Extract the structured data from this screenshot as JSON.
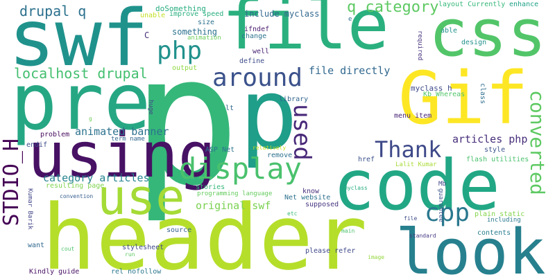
{
  "words": [
    {
      "text": "p",
      "color": "#35b779"
    },
    {
      "text": "header",
      "color": "#b5de2b"
    },
    {
      "text": "file",
      "color": "#2ab07f"
    },
    {
      "text": "swf",
      "color": "#20928c"
    },
    {
      "text": "pre",
      "color": "#26a784"
    },
    {
      "text": "p",
      "color": "#1f9e89"
    },
    {
      "text": "code",
      "color": "#22a785"
    },
    {
      "text": "look",
      "color": "#27808e"
    },
    {
      "text": "Gif",
      "color": "#fde725"
    },
    {
      "text": "css",
      "color": "#52c569"
    },
    {
      "text": "using",
      "color": "#471164"
    },
    {
      "text": "use",
      "color": "#a5db36"
    },
    {
      "text": "display",
      "color": "#4ac16d"
    },
    {
      "text": "around",
      "color": "#3b528b"
    },
    {
      "text": "Thank",
      "color": "#3e4989"
    },
    {
      "text": "used",
      "color": "#482878"
    },
    {
      "text": "php",
      "color": "#21918c"
    },
    {
      "text": "cpp",
      "color": "#2a788e"
    },
    {
      "text": "converted",
      "color": "#5ec962"
    },
    {
      "text": "STDIO_H",
      "color": "#440154"
    },
    {
      "text": "q category",
      "color": "#5ec962"
    },
    {
      "text": "drupal q",
      "color": "#2c718e"
    },
    {
      "text": "localhost drupal",
      "color": "#44bf70"
    },
    {
      "text": "file directly",
      "color": "#31688e"
    },
    {
      "text": "animated banner",
      "color": "#2c728e"
    },
    {
      "text": "articles php",
      "color": "#472d7b"
    },
    {
      "text": "category articles",
      "color": "#25838e"
    },
    {
      "text": "original swf",
      "color": "#7ad151"
    },
    {
      "text": "doSomething",
      "color": "#27ad81"
    },
    {
      "text": "include myclass",
      "color": "#31688e"
    },
    {
      "text": "something",
      "color": "#2c718e"
    },
    {
      "text": "improve speed",
      "color": "#29af7f"
    },
    {
      "text": "unable",
      "color": "#c2df23"
    },
    {
      "text": "size",
      "color": "#2c718e"
    },
    {
      "text": "animation",
      "color": "#6ccd5a"
    },
    {
      "text": "ifndef",
      "color": "#481a6c"
    },
    {
      "text": "change",
      "color": "#2c728e"
    },
    {
      "text": "layout Currently",
      "color": "#35b779"
    },
    {
      "text": "enhance",
      "color": "#1fa188"
    },
    {
      "text": "e",
      "color": "#2e6f8e"
    },
    {
      "text": "able",
      "color": "#20928c"
    },
    {
      "text": "design",
      "color": "#21918c"
    },
    {
      "text": "well",
      "color": "#482475"
    },
    {
      "text": "define",
      "color": "#3e4c8a"
    },
    {
      "text": "C",
      "color": "#472f7d"
    },
    {
      "text": "required",
      "color": "#46327e"
    },
    {
      "text": "output",
      "color": "#90d743"
    },
    {
      "text": "myclass h",
      "color": "#3e4989"
    },
    {
      "text": "Kb Whereas",
      "color": "#52c569"
    },
    {
      "text": "class",
      "color": "#2e6e8e"
    },
    {
      "text": "library",
      "color": "#32658e"
    },
    {
      "text": "lt",
      "color": "#31688e"
    },
    {
      "text": "huge",
      "color": "#3f4788"
    },
    {
      "text": "g",
      "color": "#6ece58"
    },
    {
      "text": "term name",
      "color": "#31688e"
    },
    {
      "text": "problem",
      "color": "#460b5e"
    },
    {
      "text": "endif",
      "color": "#3e4c8a"
    },
    {
      "text": "menu item",
      "color": "#482576"
    },
    {
      "text": "style",
      "color": "#3b528b"
    },
    {
      "text": "flash utilities",
      "color": "#4ac16d"
    },
    {
      "text": "href",
      "color": "#3b528b"
    },
    {
      "text": "Lalit Kumar",
      "color": "#a8db34"
    },
    {
      "text": "remove",
      "color": "#2c728e"
    },
    {
      "text": "relatively",
      "color": "#c8e020"
    },
    {
      "text": "ASP Net",
      "color": "#2b758e"
    },
    {
      "text": "resulting page",
      "color": "#7fd34e"
    },
    {
      "text": "Kumar Barik",
      "color": "#404387"
    },
    {
      "text": "stories",
      "color": "#35b779"
    },
    {
      "text": "programming language",
      "color": "#65cb5e"
    },
    {
      "text": "Net website",
      "color": "#2d708e"
    },
    {
      "text": "know",
      "color": "#472f7d"
    },
    {
      "text": "myclass",
      "color": "#26ad81"
    },
    {
      "text": "Mb",
      "color": "#3f4788"
    },
    {
      "text": "guarantee",
      "color": "#3a538b"
    },
    {
      "text": "plain static",
      "color": "#84d44b"
    },
    {
      "text": "including",
      "color": "#2a788e"
    },
    {
      "text": "convention",
      "color": "#355e8d"
    },
    {
      "text": "supposed",
      "color": "#46337f"
    },
    {
      "text": "etc",
      "color": "#3bbb75"
    },
    {
      "text": "source",
      "color": "#34608d"
    },
    {
      "text": "main",
      "color": "#4ac16d"
    },
    {
      "text": "file",
      "color": "#3d4e8a"
    },
    {
      "text": "contents",
      "color": "#287d8e"
    },
    {
      "text": "standard",
      "color": "#443983"
    },
    {
      "text": "want",
      "color": "#31688e"
    },
    {
      "text": "stylesheet",
      "color": "#3e4989"
    },
    {
      "text": "please refer",
      "color": "#3f4889"
    },
    {
      "text": "cout",
      "color": "#50c46a"
    },
    {
      "text": "run",
      "color": "#5ec962"
    },
    {
      "text": "image",
      "color": "#95d840"
    },
    {
      "text": "Kindly guide",
      "color": "#471063"
    },
    {
      "text": "rel nofollow",
      "color": "#2a768e"
    }
  ]
}
